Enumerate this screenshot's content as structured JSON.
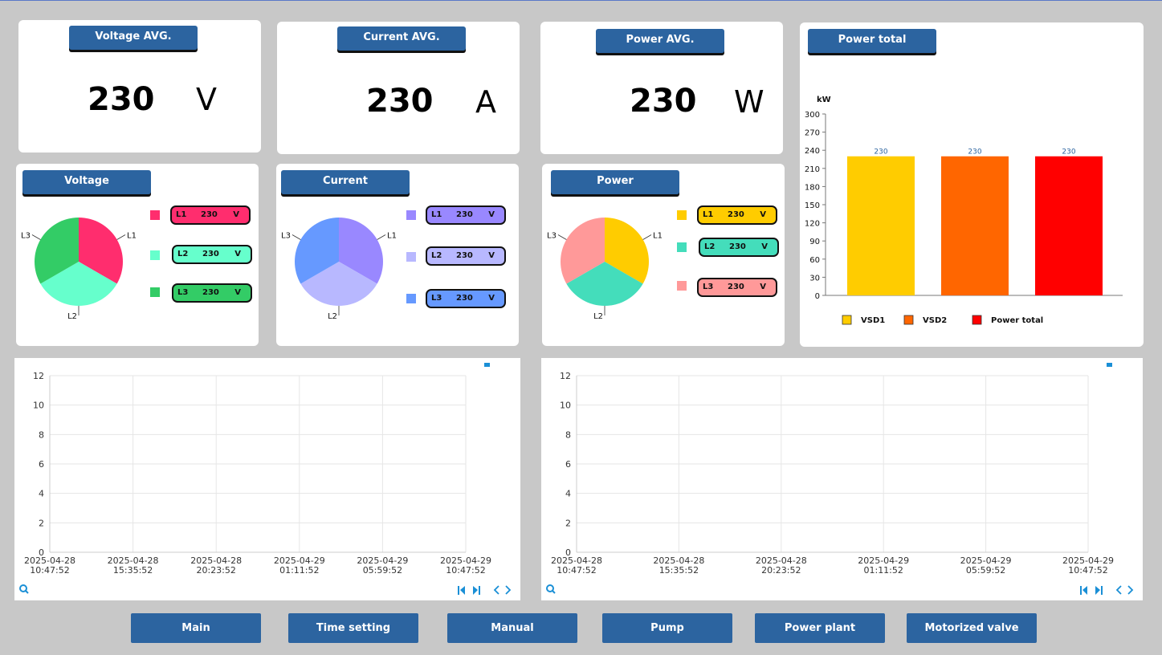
{
  "avg_cards": [
    {
      "title": "Voltage AVG.",
      "value": "230",
      "unit": "V"
    },
    {
      "title": "Current AVG.",
      "value": "230",
      "unit": "A"
    },
    {
      "title": "Power AVG.",
      "value": "230",
      "unit": "W"
    }
  ],
  "phase_cards": [
    {
      "title": "Voltage",
      "unit": "V",
      "phases": [
        {
          "label": "L1",
          "value": "230",
          "color": "#ff2d6e"
        },
        {
          "label": "L2",
          "value": "230",
          "color": "#66ffcc"
        },
        {
          "label": "L3",
          "value": "230",
          "color": "#33cc66"
        }
      ]
    },
    {
      "title": "Current",
      "unit": "V",
      "phases": [
        {
          "label": "L1",
          "value": "230",
          "color": "#9988ff"
        },
        {
          "label": "L2",
          "value": "230",
          "color": "#b8b8ff"
        },
        {
          "label": "L3",
          "value": "230",
          "color": "#6699ff"
        }
      ]
    },
    {
      "title": "Power",
      "unit": "V",
      "phases": [
        {
          "label": "L1",
          "value": "230",
          "color": "#ffcc00"
        },
        {
          "label": "L2",
          "value": "230",
          "color": "#44ddbb"
        },
        {
          "label": "L3",
          "value": "230",
          "color": "#ff9999"
        }
      ]
    }
  ],
  "power_total": {
    "title": "Power total"
  },
  "chart_data": [
    {
      "type": "pie",
      "categories": [
        "L1",
        "L2",
        "L3"
      ],
      "values": [
        230,
        230,
        230
      ]
    },
    {
      "type": "pie",
      "categories": [
        "L1",
        "L2",
        "L3"
      ],
      "values": [
        230,
        230,
        230
      ]
    },
    {
      "type": "pie",
      "categories": [
        "L1",
        "L2",
        "L3"
      ],
      "values": [
        230,
        230,
        230
      ]
    },
    {
      "type": "bar",
      "categories": [
        "VSD1",
        "VSD2",
        "Power total"
      ],
      "values": [
        230,
        230,
        230
      ],
      "colors": [
        "#ffcc00",
        "#ff6600",
        "#ff0000"
      ],
      "ylabel": "kW",
      "ylim": [
        0,
        300
      ],
      "yticks": [
        0,
        30,
        60,
        90,
        120,
        150,
        180,
        210,
        240,
        270,
        300
      ],
      "legend": "bottom"
    },
    {
      "type": "line",
      "series": [],
      "ylim": [
        0,
        12
      ],
      "yticks": [
        0,
        2,
        4,
        6,
        8,
        10,
        12
      ],
      "xticks": [
        [
          "2025-04-28",
          "10:47:52"
        ],
        [
          "2025-04-28",
          "15:35:52"
        ],
        [
          "2025-04-28",
          "20:23:52"
        ],
        [
          "2025-04-29",
          "01:11:52"
        ],
        [
          "2025-04-29",
          "05:59:52"
        ],
        [
          "2025-04-29",
          "10:47:52"
        ]
      ]
    },
    {
      "type": "line",
      "series": [],
      "ylim": [
        0,
        12
      ],
      "yticks": [
        0,
        2,
        4,
        6,
        8,
        10,
        12
      ],
      "xticks": [
        [
          "2025-04-28",
          "10:47:52"
        ],
        [
          "2025-04-28",
          "15:35:52"
        ],
        [
          "2025-04-28",
          "20:23:52"
        ],
        [
          "2025-04-29",
          "01:11:52"
        ],
        [
          "2025-04-29",
          "05:59:52"
        ],
        [
          "2025-04-29",
          "10:47:52"
        ]
      ]
    }
  ],
  "trend_toolbar": {
    "zoom_icon": "search-icon",
    "first_icon": "skip-first-icon",
    "last_icon": "skip-last-icon",
    "prev_icon": "chevron-left-icon",
    "next_icon": "chevron-right-icon",
    "accent": "#1a8fd6"
  },
  "nav": [
    "Main",
    "Time setting",
    "Manual",
    "Pump",
    "Power plant",
    "Motorized valve"
  ]
}
